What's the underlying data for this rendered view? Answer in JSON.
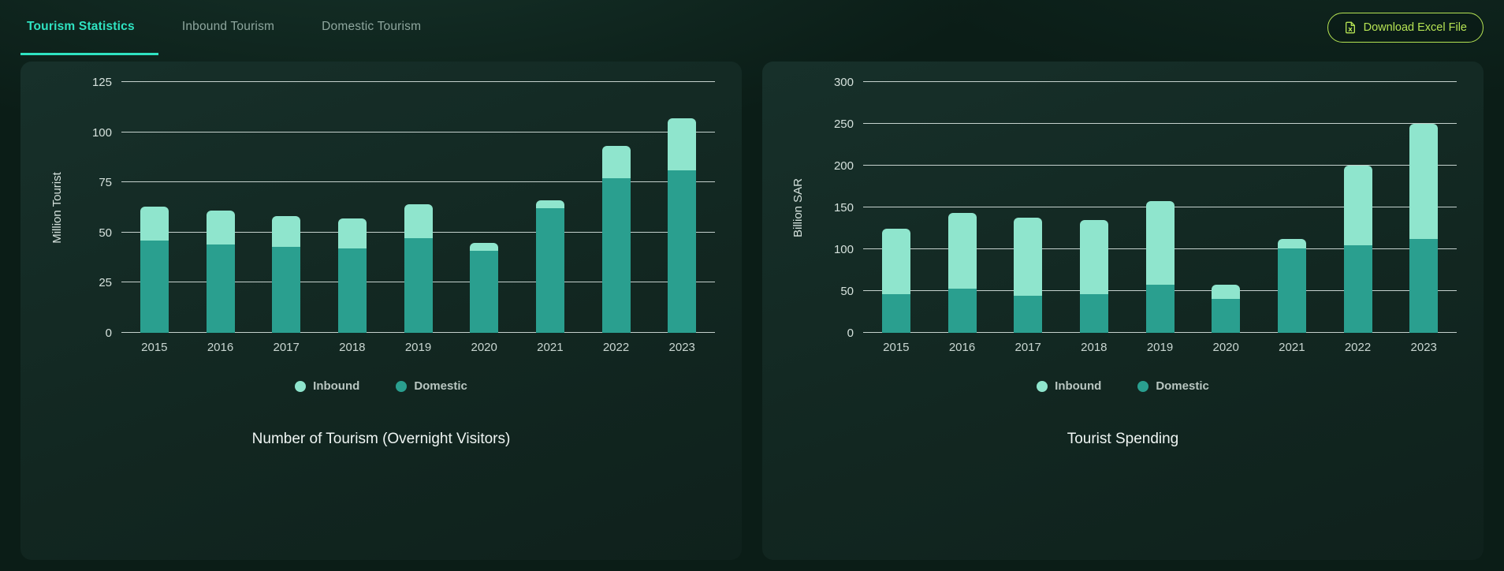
{
  "header": {
    "tabs": [
      {
        "label": "Tourism Statistics",
        "active": true
      },
      {
        "label": "Inbound Tourism",
        "active": false
      },
      {
        "label": "Domestic Tourism",
        "active": false
      }
    ],
    "download_button": {
      "label": "Download Excel File",
      "icon": "excel-file-icon"
    }
  },
  "colors": {
    "accent_teal": "#2FE3C2",
    "inbound": "#8FE5CD",
    "domestic": "#2A9F8F",
    "download_green": "#B5E353",
    "gridline": "#E4EFEB",
    "panel_bg": "#14291F"
  },
  "chart_data": [
    {
      "type": "bar",
      "stacked": true,
      "title": "Number of Tourism (Overnight Visitors)",
      "ylabel": "Million Tourist",
      "categories": [
        "2015",
        "2016",
        "2017",
        "2018",
        "2019",
        "2020",
        "2021",
        "2022",
        "2023"
      ],
      "series": [
        {
          "name": "Inbound",
          "color": "#8FE5CD",
          "position": "top",
          "values": [
            17,
            17,
            15,
            15,
            17,
            4,
            4,
            16,
            26
          ]
        },
        {
          "name": "Domestic",
          "color": "#2A9F8F",
          "position": "bottom",
          "values": [
            46,
            44,
            43,
            42,
            47,
            41,
            62,
            77,
            81
          ]
        }
      ],
      "yticks": [
        0,
        25,
        50,
        75,
        100,
        125
      ],
      "ylim": [
        0,
        125
      ],
      "grid": true,
      "legend_position": "bottom"
    },
    {
      "type": "bar",
      "stacked": true,
      "title": "Tourist Spending",
      "ylabel": "Billion SAR",
      "categories": [
        "2015",
        "2016",
        "2017",
        "2018",
        "2019",
        "2020",
        "2021",
        "2022",
        "2023"
      ],
      "series": [
        {
          "name": "Inbound",
          "color": "#8FE5CD",
          "position": "top",
          "values": [
            79,
            90,
            94,
            89,
            100,
            17,
            11,
            95,
            138
          ]
        },
        {
          "name": "Domestic",
          "color": "#2A9F8F",
          "position": "bottom",
          "values": [
            46,
            53,
            44,
            46,
            58,
            41,
            101,
            105,
            112
          ]
        }
      ],
      "yticks": [
        0,
        50,
        100,
        150,
        200,
        250,
        300
      ],
      "ylim": [
        0,
        300
      ],
      "grid": true,
      "legend_position": "bottom"
    }
  ]
}
